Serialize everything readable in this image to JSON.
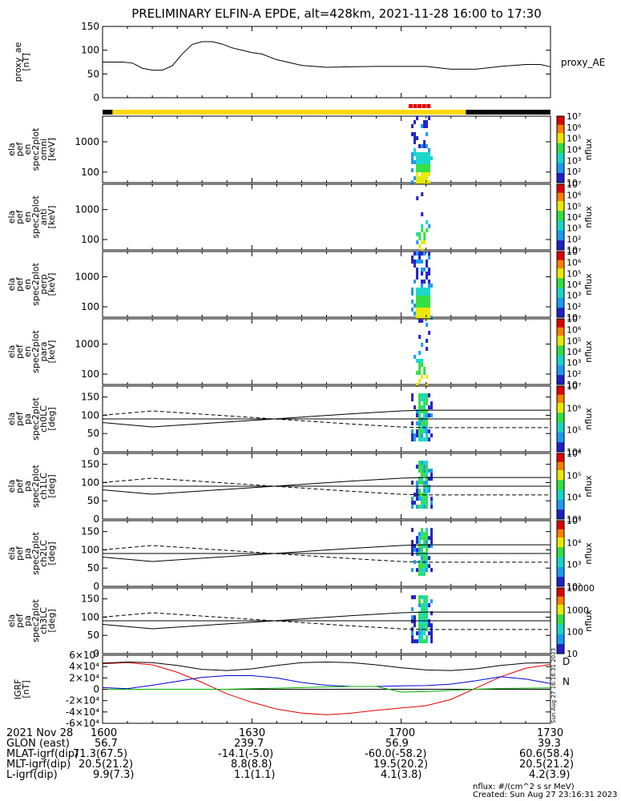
{
  "title": "PRELIMINARY ELFIN-A EPDE, alt=428km, 2021-11-28 16:00 to 17:30",
  "time_range": [
    "2021-11-28 16:00",
    "2021-11-28 17:30"
  ],
  "chart_data": [
    {
      "type": "line",
      "name": "proxy_ae",
      "ylabel": [
        "proxy_ae",
        "[nT]"
      ],
      "legend": "proxy_AE",
      "ylim": [
        0,
        150
      ],
      "yticks": [
        "0",
        "50",
        "100",
        "150"
      ],
      "x_minutes": [
        0,
        2,
        4,
        6,
        8,
        10,
        12,
        14,
        16,
        18,
        20,
        22,
        24,
        26,
        28,
        30,
        32,
        35,
        40,
        45,
        50,
        55,
        60,
        65,
        70,
        75,
        80,
        85,
        88,
        90
      ],
      "values": [
        75,
        75,
        75,
        73,
        62,
        58,
        58,
        67,
        92,
        112,
        118,
        118,
        113,
        105,
        100,
        95,
        92,
        80,
        68,
        64,
        65,
        66,
        66,
        66,
        60,
        60,
        66,
        70,
        70,
        65
      ]
    },
    {
      "type": "heatmap",
      "name": "ela_pef_en_spec2plot_omni",
      "ylabel": [
        "ela",
        "pef",
        "en",
        "spec2plot",
        "omni",
        "[keV]"
      ],
      "yscale": "log",
      "yticks": [
        "100",
        "1000"
      ],
      "colorbar": {
        "label": "nflux",
        "ticks": [
          "10",
          "10²",
          "10³",
          "10⁴",
          "10⁵",
          "10⁶",
          "10⁷"
        ]
      },
      "active_minutes": [
        62,
        66
      ],
      "peak_band_keV": [
        60,
        300
      ]
    },
    {
      "type": "heatmap",
      "name": "ela_pef_en_spec2plot_anti",
      "ylabel": [
        "ela",
        "pef",
        "en",
        "spec2plot",
        "anti",
        "[keV]"
      ],
      "yscale": "log",
      "yticks": [
        "100",
        "1000"
      ],
      "colorbar": {
        "label": "nflux",
        "ticks": [
          "10",
          "10²",
          "10³",
          "10⁴",
          "10⁵",
          "10⁶",
          "10⁷"
        ]
      },
      "active_minutes": [
        63,
        65.5
      ]
    },
    {
      "type": "heatmap",
      "name": "ela_pef_en_spec2plot_perp",
      "ylabel": [
        "ela",
        "pef",
        "en",
        "spec2plot",
        "perp",
        "[keV]"
      ],
      "yscale": "log",
      "yticks": [
        "100",
        "1000"
      ],
      "colorbar": {
        "label": "nflux",
        "ticks": [
          "10",
          "10²",
          "10³",
          "10⁴",
          "10⁵",
          "10⁶",
          "10⁷"
        ]
      },
      "active_minutes": [
        62,
        66
      ]
    },
    {
      "type": "heatmap",
      "name": "ela_pef_en_spec2plot_para",
      "ylabel": [
        "ela",
        "pef",
        "en",
        "spec2plot",
        "para",
        "[keV]"
      ],
      "yscale": "log",
      "yticks": [
        "100",
        "1000"
      ],
      "colorbar": {
        "label": "nflux",
        "ticks": [
          "10",
          "10²",
          "10³",
          "10⁴",
          "10⁵",
          "10⁶",
          "10⁷"
        ]
      },
      "active_minutes": [
        62.5,
        65.5
      ]
    },
    {
      "type": "heatmap",
      "name": "ela_pef_pa_spec2plot_ch0LC",
      "ylabel": [
        "ela",
        "pef",
        "pa",
        "spec2plot",
        "ch0LC",
        "[deg]"
      ],
      "ylim": [
        0,
        180
      ],
      "yticks": [
        "0",
        "50",
        "100",
        "150"
      ],
      "colorbar": {
        "label": "nflux",
        "ticks": [
          "10⁴",
          "10⁵",
          "10⁶",
          "10⁷"
        ]
      },
      "lc_minutes": [
        0,
        10,
        20,
        30,
        40,
        50,
        60,
        65,
        70,
        80,
        90
      ],
      "loss_cone_deg": [
        80,
        68,
        77,
        86,
        95,
        104,
        112,
        114,
        114,
        114,
        114
      ],
      "anti_loss_cone_deg": [
        100,
        112,
        103,
        94,
        85,
        76,
        68,
        66,
        66,
        66,
        66
      ]
    },
    {
      "type": "heatmap",
      "name": "ela_pef_pa_spec2plot_ch1LC",
      "ylabel": [
        "ela",
        "pef",
        "pa",
        "spec2plot",
        "ch1LC",
        "[deg]"
      ],
      "ylim": [
        0,
        180
      ],
      "yticks": [
        "0",
        "50",
        "100",
        "150"
      ],
      "colorbar": {
        "label": "nflux",
        "ticks": [
          "10³",
          "10⁴",
          "10⁵",
          "10⁶"
        ]
      }
    },
    {
      "type": "heatmap",
      "name": "ela_pef_pa_spec2plot_ch2LC",
      "ylabel": [
        "ela",
        "pef",
        "pa",
        "spec2plot",
        "ch2LC",
        "[deg]"
      ],
      "ylim": [
        0,
        180
      ],
      "yticks": [
        "0",
        "50",
        "100",
        "150"
      ],
      "colorbar": {
        "label": "nflux",
        "ticks": [
          "10²",
          "10³",
          "10⁴",
          "10⁵"
        ]
      }
    },
    {
      "type": "heatmap",
      "name": "ela_pef_pa_spec2plot_ch3LC",
      "ylabel": [
        "ela",
        "pef",
        "pa",
        "spec2plot",
        "ch3LC",
        "[deg]"
      ],
      "ylim": [
        0,
        180
      ],
      "yticks": [
        "0",
        "50",
        "100",
        "150"
      ],
      "colorbar": {
        "label": "nflux",
        "ticks": [
          "10",
          "100",
          "1000",
          "10000"
        ]
      }
    },
    {
      "type": "line",
      "name": "IGRF",
      "ylabel": [
        "IGRF",
        "[nT]"
      ],
      "ylim": [
        -60000,
        60000
      ],
      "yticks": [
        "-6×10⁴",
        "-4×10⁴",
        "-2×10⁴",
        "0",
        "2×10⁴",
        "4×10⁴",
        "6×10⁴"
      ],
      "x_minutes": [
        0,
        5,
        10,
        15,
        20,
        25,
        30,
        35,
        40,
        45,
        50,
        55,
        60,
        65,
        70,
        75,
        80,
        85,
        90
      ],
      "series": [
        {
          "name": "D",
          "color": "#e00000",
          "values": [
            45000,
            47000,
            43000,
            30000,
            12000,
            -8000,
            -23000,
            -35000,
            -42000,
            -45000,
            -42000,
            -37000,
            -33000,
            -29000,
            -18000,
            2000,
            22000,
            37000,
            44000
          ]
        },
        {
          "name": "N",
          "color": "#0000d0",
          "values": [
            3000,
            1000,
            7000,
            14000,
            21000,
            24000,
            24000,
            20000,
            12000,
            7000,
            5000,
            5000,
            6000,
            6500,
            9000,
            15000,
            22000,
            18000,
            10000
          ]
        },
        {
          "name": "",
          "color": "#00b000",
          "values": [
            0,
            0,
            0,
            0,
            0,
            0,
            1000,
            2000,
            3000,
            4000,
            5000,
            5000,
            -5000,
            -4000,
            -2000,
            0,
            1500,
            2000,
            2500
          ]
        },
        {
          "name": "",
          "color": "#000000",
          "values": [
            46000,
            48000,
            47000,
            42000,
            35000,
            33000,
            36000,
            42000,
            47000,
            48000,
            47000,
            43000,
            38000,
            34000,
            33000,
            36000,
            42000,
            46000,
            47000
          ]
        }
      ]
    }
  ],
  "annotations": {
    "science_bar_colors": [
      "#000000",
      "#ffd800",
      "#000000"
    ],
    "science_zone_minutes": [
      2,
      73
    ],
    "red_marker_minutes": [
      61.5,
      65.5
    ],
    "side_stamp": "Sun Aug 27 16:16:31 2023"
  },
  "footer": {
    "rows": [
      {
        "label": "2021 Nov 28",
        "values": [
          "1600",
          "1630",
          "1700",
          "1730"
        ]
      },
      {
        "label": "GLON (east)",
        "values": [
          "56.7",
          "239.7",
          "56.9",
          "39.3"
        ]
      },
      {
        "label": "MLAT-igrf(dip)",
        "values": [
          "71.3(67.5)",
          "-14.1(-5.0)",
          "-60.0(-58.2)",
          "60.6(58.4)"
        ]
      },
      {
        "label": "MLT-igrf(dip)",
        "values": [
          "20.5(21.2)",
          "8.8(8.8)",
          "19.5(20.2)",
          "20.5(21.2)"
        ]
      },
      {
        "label": "L-igrf(dip)",
        "values": [
          "9.9(7.3)",
          "1.1(1.1)",
          "4.1(3.8)",
          "4.2(3.9)"
        ]
      }
    ],
    "units_note": "nflux: #/(cm^2 s sr MeV)",
    "created": "Created: Sun Aug 27 23:16:31 2023"
  }
}
